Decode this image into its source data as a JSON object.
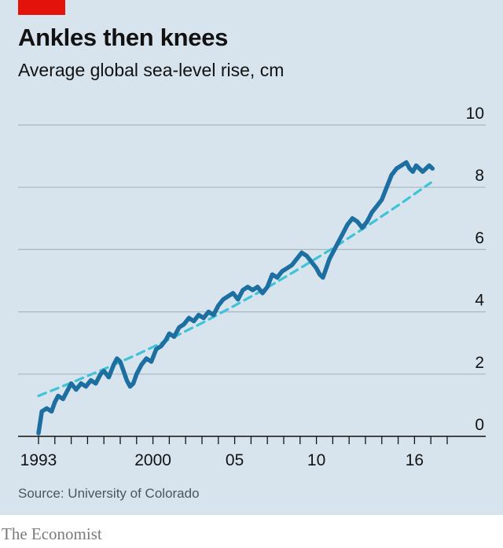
{
  "header": {
    "title": "Ankles then knees",
    "subtitle": "Average global sea-level rise, cm"
  },
  "footer": {
    "source": "Source: University of Colorado",
    "brand": "The Economist"
  },
  "colors": {
    "background": "#d7e4ee",
    "series": "#1c6fa0",
    "trend": "#3fc3d6",
    "accent_tag": "#e3120b",
    "grid": "#a9b6c0"
  },
  "chart_data": {
    "type": "line",
    "title": "Ankles then knees",
    "subtitle": "Average global sea-level rise, cm",
    "ylabel": "",
    "xlabel": "",
    "ylim": [
      0,
      10
    ],
    "xlim": [
      1993,
      2018
    ],
    "y_ticks": [
      0,
      2,
      4,
      6,
      8,
      10
    ],
    "y_tick_labels": [
      "0",
      "2",
      "4",
      "6",
      "8",
      "10"
    ],
    "x_tick_labels": [
      {
        "value": 1993,
        "label": "1993"
      },
      {
        "value": 2000,
        "label": "2000"
      },
      {
        "value": 2005,
        "label": "05"
      },
      {
        "value": 2010,
        "label": "10"
      },
      {
        "value": 2016,
        "label": "16"
      }
    ],
    "grid": true,
    "series": [
      {
        "name": "",
        "style": "solid",
        "x": [
          1993.0,
          1993.2,
          1993.5,
          1993.8,
          1994.0,
          1994.2,
          1994.5,
          1994.8,
          1995.0,
          1995.3,
          1995.6,
          1995.9,
          1996.2,
          1996.5,
          1996.8,
          1997.0,
          1997.3,
          1997.6,
          1997.8,
          1998.0,
          1998.2,
          1998.4,
          1998.6,
          1998.8,
          1999.0,
          1999.3,
          1999.6,
          1999.9,
          2000.2,
          2000.5,
          2000.8,
          2001.0,
          2001.3,
          2001.6,
          2001.9,
          2002.2,
          2002.5,
          2002.8,
          2003.1,
          2003.4,
          2003.7,
          2004.0,
          2004.3,
          2004.6,
          2004.9,
          2005.2,
          2005.5,
          2005.8,
          2006.1,
          2006.4,
          2006.7,
          2007.0,
          2007.3,
          2007.6,
          2007.9,
          2008.2,
          2008.5,
          2008.8,
          2009.1,
          2009.4,
          2009.7,
          2010.0,
          2010.2,
          2010.4,
          2010.6,
          2010.8,
          2011.0,
          2011.3,
          2011.6,
          2011.9,
          2012.2,
          2012.5,
          2012.8,
          2013.1,
          2013.4,
          2013.7,
          2014.0,
          2014.3,
          2014.6,
          2014.9,
          2015.2,
          2015.5,
          2015.7,
          2015.9,
          2016.1,
          2016.3,
          2016.5,
          2016.7,
          2016.9,
          2017.1
        ],
        "y": [
          0.1,
          0.8,
          0.9,
          0.8,
          1.1,
          1.3,
          1.2,
          1.5,
          1.7,
          1.5,
          1.7,
          1.6,
          1.8,
          1.7,
          2.0,
          2.1,
          1.9,
          2.3,
          2.5,
          2.4,
          2.1,
          1.8,
          1.6,
          1.7,
          2.0,
          2.3,
          2.5,
          2.4,
          2.8,
          2.9,
          3.1,
          3.3,
          3.2,
          3.5,
          3.6,
          3.8,
          3.7,
          3.9,
          3.8,
          4.0,
          3.9,
          4.2,
          4.4,
          4.5,
          4.6,
          4.4,
          4.7,
          4.8,
          4.7,
          4.8,
          4.6,
          4.8,
          5.2,
          5.1,
          5.3,
          5.4,
          5.5,
          5.7,
          5.9,
          5.8,
          5.6,
          5.4,
          5.2,
          5.1,
          5.4,
          5.7,
          5.9,
          6.2,
          6.5,
          6.8,
          7.0,
          6.9,
          6.7,
          6.9,
          7.2,
          7.4,
          7.6,
          8.0,
          8.4,
          8.6,
          8.7,
          8.8,
          8.6,
          8.5,
          8.7,
          8.6,
          8.5,
          8.6,
          8.7,
          8.6
        ]
      },
      {
        "name": "",
        "style": "dashed",
        "x": [
          1993.0,
          1995.0,
          1997.0,
          1999.0,
          2001.0,
          2003.0,
          2005.0,
          2007.0,
          2009.0,
          2011.0,
          2013.0,
          2015.0,
          2017.0
        ],
        "y": [
          1.3,
          1.72,
          2.16,
          2.62,
          3.12,
          3.64,
          4.2,
          4.78,
          5.4,
          6.04,
          6.72,
          7.42,
          8.15
        ]
      }
    ]
  }
}
